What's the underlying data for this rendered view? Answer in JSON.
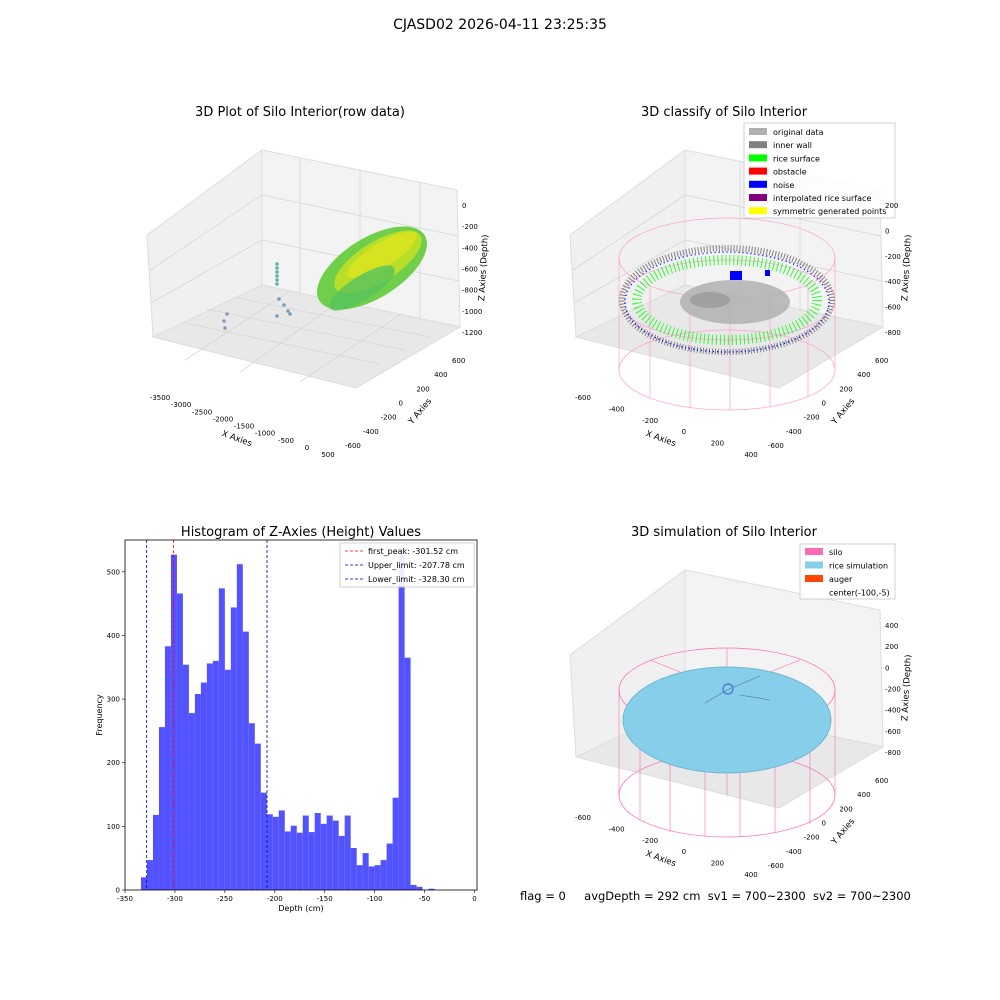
{
  "figure_title": "CJASD02 2026-04-11 23:25:35",
  "footer": {
    "flag": "flag = 0",
    "avg": "avgDepth = 292 cm",
    "sv1": "sv1 = 700~2300",
    "sv2": "sv2 = 700~2300"
  },
  "chart_data": [
    {
      "type": "scatter",
      "title": "3D Plot of Silo Interior(row data)",
      "xlabel": "X Axies",
      "ylabel": "Y Axies",
      "zlabel": "Z Axies (Depth)",
      "xticks": [
        "-3500",
        "-3000",
        "-2500",
        "-2000",
        "-1500",
        "-1000",
        "-500",
        "0",
        "500"
      ],
      "yticks": [
        "-600",
        "-400",
        "-200",
        "0",
        "200",
        "400",
        "600"
      ],
      "zticks": [
        "0",
        "-200",
        "-400",
        "-600",
        "-800",
        "-1000",
        "-1200"
      ],
      "colormap": [
        "#9fd83a",
        "#c8e020",
        "#5cc863",
        "#20a486",
        "#3b528b"
      ]
    },
    {
      "type": "scatter",
      "title": "3D classify of Silo Interior",
      "xlabel": "X Axies",
      "ylabel": "Y Axies",
      "zlabel": "Z Axies (Depth)",
      "xticks": [
        "-600",
        "-400",
        "-200",
        "0",
        "200",
        "400"
      ],
      "yticks": [
        "-600",
        "-400",
        "-200",
        "0",
        "200",
        "400",
        "600"
      ],
      "zticks": [
        "200",
        "0",
        "-200",
        "-400",
        "-600",
        "-800"
      ],
      "legend": [
        {
          "label": "original data",
          "color": "#b0b0b0"
        },
        {
          "label": "inner wall",
          "color": "#808080"
        },
        {
          "label": "rice surface",
          "color": "#00ff00"
        },
        {
          "label": "obstacle",
          "color": "#ff0000"
        },
        {
          "label": "noise",
          "color": "#0000ff"
        },
        {
          "label": "interpolated rice surface",
          "color": "#800080"
        },
        {
          "label": "symmetric generated points",
          "color": "#ffff00"
        }
      ],
      "wireframe_color": "#ff9ecf"
    },
    {
      "type": "bar",
      "title": "Histogram of Z-Axies (Height) Values",
      "xlabel": "Depth (cm)",
      "ylabel": "Frequency",
      "bar_color": "#4c4cff",
      "bin_start": -334,
      "bin_width": 6,
      "values": [
        20,
        47,
        118,
        256,
        383,
        527,
        466,
        354,
        278,
        308,
        326,
        356,
        360,
        474,
        346,
        444,
        512,
        406,
        262,
        230,
        153,
        119,
        115,
        125,
        92,
        101,
        90,
        117,
        91,
        121,
        104,
        117,
        109,
        85,
        117,
        66,
        39,
        58,
        37,
        39,
        47,
        73,
        145,
        527,
        365,
        8,
        5,
        0,
        2
      ],
      "xlim": [
        -350,
        2.5
      ],
      "ylim": [
        0,
        550
      ],
      "xticks": [
        -350,
        -300,
        -250,
        -200,
        -150,
        -100,
        -50,
        0
      ],
      "yticks": [
        0,
        100,
        200,
        300,
        400,
        500
      ],
      "vlines": [
        {
          "label": "first_peak: -301.52 cm",
          "x": -301.52,
          "color": "#ff0000"
        },
        {
          "label": "Upper_limit: -207.78 cm",
          "x": -207.78,
          "color": "#0000aa"
        },
        {
          "label": "Lower_limit: -328.30 cm",
          "x": -328.3,
          "color": "#0000aa"
        }
      ],
      "legend_position": "top-right"
    },
    {
      "type": "scatter",
      "title": "3D simulation of Silo Interior",
      "xlabel": "X Axies",
      "ylabel": "Y Axies",
      "zlabel": "Z Axies (Depth)",
      "xticks": [
        "-600",
        "-400",
        "-200",
        "0",
        "200",
        "400"
      ],
      "yticks": [
        "-600",
        "-400",
        "-200",
        "0",
        "200",
        "400",
        "600"
      ],
      "zticks": [
        "400",
        "200",
        "0",
        "-200",
        "-400",
        "-600",
        "-800"
      ],
      "legend": [
        {
          "label": "silo",
          "color": "#ff69b4"
        },
        {
          "label": "rice simulation",
          "color": "#87ceeb"
        },
        {
          "label": "auger",
          "color": "#ff4500"
        },
        {
          "label": "center(-100,-5)",
          "color": ""
        }
      ]
    }
  ]
}
